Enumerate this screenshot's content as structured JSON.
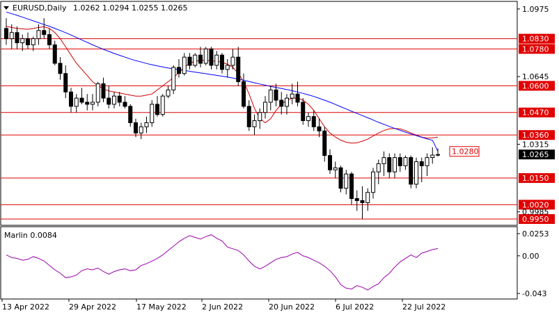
{
  "chart_data": {
    "type": "candlestick",
    "symbol_label": "EURUSD,Daily",
    "ohlc_label": "1.0262 1.0294 1.0255 1.0265",
    "ylim": [
      0.995,
      1.0995
    ],
    "price_ticks": [
      "1.0975",
      "1.0645",
      "1.0315",
      "0.9985"
    ],
    "current_price": "1.0265",
    "colors": {
      "candle": "#000000",
      "ma_blue": "#0000ff",
      "ma_red": "#d00000",
      "level": "#e00000",
      "marlin": "#9900aa",
      "price_box": "#000000"
    },
    "levels": [
      {
        "label": "1.0830",
        "value": 1.083
      },
      {
        "label": "1.0780",
        "value": 1.078
      },
      {
        "label": "1.0600",
        "value": 1.06
      },
      {
        "label": "1.0470",
        "value": 1.047
      },
      {
        "label": "1.0360",
        "value": 1.036
      },
      {
        "label": "1.0150",
        "value": 1.015
      },
      {
        "label": "1.0020",
        "value": 1.002
      },
      {
        "label": "0.9950",
        "value": 0.995
      }
    ],
    "annotation": {
      "label": "1.0280",
      "value": 1.028
    },
    "x_labels": [
      "13 Apr 2022",
      "29 Apr 2022",
      "17 May 2022",
      "2 Jun 2022",
      "20 Jun 2022",
      "6 Jul 2022",
      "22 Jul 2022"
    ],
    "candles": [
      [
        1.088,
        1.093,
        1.08,
        1.083
      ],
      [
        1.083,
        1.09,
        1.078,
        1.086
      ],
      [
        1.086,
        1.089,
        1.078,
        1.081
      ],
      [
        1.081,
        1.085,
        1.077,
        1.083
      ],
      [
        1.083,
        1.086,
        1.078,
        1.08
      ],
      [
        1.08,
        1.084,
        1.077,
        1.083
      ],
      [
        1.083,
        1.09,
        1.08,
        1.087
      ],
      [
        1.087,
        1.093,
        1.083,
        1.085
      ],
      [
        1.085,
        1.088,
        1.078,
        1.08
      ],
      [
        1.08,
        1.082,
        1.07,
        1.071
      ],
      [
        1.071,
        1.074,
        1.063,
        1.066
      ],
      [
        1.066,
        1.07,
        1.054,
        1.057
      ],
      [
        1.057,
        1.059,
        1.047,
        1.05
      ],
      [
        1.05,
        1.056,
        1.047,
        1.054
      ],
      [
        1.054,
        1.059,
        1.051,
        1.052
      ],
      [
        1.052,
        1.056,
        1.048,
        1.051
      ],
      [
        1.051,
        1.056,
        1.048,
        1.052
      ],
      [
        1.052,
        1.062,
        1.05,
        1.061
      ],
      [
        1.061,
        1.064,
        1.052,
        1.054
      ],
      [
        1.054,
        1.06,
        1.049,
        1.051
      ],
      [
        1.051,
        1.057,
        1.049,
        1.055
      ],
      [
        1.055,
        1.057,
        1.05,
        1.052
      ],
      [
        1.052,
        1.055,
        1.049,
        1.05
      ],
      [
        1.05,
        1.051,
        1.04,
        1.042
      ],
      [
        1.042,
        1.044,
        1.035,
        1.037
      ],
      [
        1.037,
        1.042,
        1.034,
        1.04
      ],
      [
        1.04,
        1.045,
        1.037,
        1.042
      ],
      [
        1.042,
        1.053,
        1.04,
        1.051
      ],
      [
        1.051,
        1.055,
        1.045,
        1.046
      ],
      [
        1.046,
        1.056,
        1.045,
        1.055
      ],
      [
        1.055,
        1.06,
        1.054,
        1.058
      ],
      [
        1.058,
        1.07,
        1.056,
        1.069
      ],
      [
        1.069,
        1.073,
        1.064,
        1.066
      ],
      [
        1.066,
        1.076,
        1.065,
        1.074
      ],
      [
        1.074,
        1.076,
        1.068,
        1.07
      ],
      [
        1.07,
        1.076,
        1.069,
        1.075
      ],
      [
        1.075,
        1.079,
        1.069,
        1.071
      ],
      [
        1.071,
        1.079,
        1.07,
        1.078
      ],
      [
        1.078,
        1.079,
        1.068,
        1.07
      ],
      [
        1.07,
        1.077,
        1.068,
        1.075
      ],
      [
        1.075,
        1.076,
        1.066,
        1.068
      ],
      [
        1.068,
        1.073,
        1.064,
        1.07
      ],
      [
        1.07,
        1.078,
        1.068,
        1.074
      ],
      [
        1.074,
        1.079,
        1.06,
        1.062
      ],
      [
        1.062,
        1.066,
        1.049,
        1.05
      ],
      [
        1.05,
        1.053,
        1.038,
        1.04
      ],
      [
        1.04,
        1.046,
        1.036,
        1.043
      ],
      [
        1.043,
        1.049,
        1.039,
        1.047
      ],
      [
        1.047,
        1.055,
        1.044,
        1.052
      ],
      [
        1.052,
        1.06,
        1.048,
        1.058
      ],
      [
        1.058,
        1.061,
        1.05,
        1.053
      ],
      [
        1.053,
        1.057,
        1.046,
        1.05
      ],
      [
        1.05,
        1.056,
        1.046,
        1.054
      ],
      [
        1.054,
        1.061,
        1.051,
        1.056
      ],
      [
        1.056,
        1.062,
        1.05,
        1.052
      ],
      [
        1.052,
        1.054,
        1.041,
        1.043
      ],
      [
        1.043,
        1.047,
        1.04,
        1.045
      ],
      [
        1.045,
        1.048,
        1.038,
        1.04
      ],
      [
        1.04,
        1.044,
        1.035,
        1.038
      ],
      [
        1.038,
        1.04,
        1.023,
        1.026
      ],
      [
        1.026,
        1.029,
        1.017,
        1.019
      ],
      [
        1.019,
        1.023,
        1.015,
        1.02
      ],
      [
        1.02,
        1.021,
        1.008,
        1.01
      ],
      [
        1.01,
        1.019,
        1.007,
        1.017
      ],
      [
        1.017,
        1.018,
        1.002,
        1.005
      ],
      [
        1.005,
        1.009,
        0.999,
        1.004
      ],
      [
        1.004,
        1.011,
        0.995,
        1.003
      ],
      [
        1.003,
        1.01,
        0.999,
        1.008
      ],
      [
        1.008,
        1.02,
        1.005,
        1.018
      ],
      [
        1.018,
        1.024,
        1.012,
        1.022
      ],
      [
        1.022,
        1.028,
        1.016,
        1.025
      ],
      [
        1.025,
        1.027,
        1.015,
        1.018
      ],
      [
        1.018,
        1.027,
        1.015,
        1.025
      ],
      [
        1.025,
        1.027,
        1.018,
        1.021
      ],
      [
        1.021,
        1.026,
        1.019,
        1.025
      ],
      [
        1.025,
        1.026,
        1.01,
        1.012
      ],
      [
        1.012,
        1.025,
        1.01,
        1.023
      ],
      [
        1.023,
        1.025,
        1.013,
        1.021
      ],
      [
        1.021,
        1.027,
        1.016,
        1.025
      ],
      [
        1.025,
        1.03,
        1.022,
        1.0262
      ],
      [
        1.0262,
        1.0294,
        1.0255,
        1.0265
      ]
    ],
    "ma_blue": [
      1.096,
      1.0952,
      1.0944,
      1.0935,
      1.0926,
      1.0917,
      1.0908,
      1.0899,
      1.089,
      1.088,
      1.087,
      1.0859,
      1.0848,
      1.0836,
      1.0824,
      1.0812,
      1.08,
      1.0789,
      1.0778,
      1.0768,
      1.0758,
      1.0749,
      1.074,
      1.0731,
      1.0723,
      1.0716,
      1.0709,
      1.0703,
      1.0697,
      1.0692,
      1.0687,
      1.0683,
      1.0679,
      1.0675,
      1.0671,
      1.0667,
      1.0663,
      1.0659,
      1.0655,
      1.0651,
      1.0647,
      1.0643,
      1.0638,
      1.0633,
      1.0627,
      1.0621,
      1.0615,
      1.0609,
      1.0603,
      1.0597,
      1.0592,
      1.0587,
      1.0582,
      1.0576,
      1.057,
      1.0563,
      1.0556,
      1.0548,
      1.0539,
      1.053,
      1.052,
      1.0509,
      1.0498,
      1.0487,
      1.0476,
      1.0465,
      1.0455,
      1.0444,
      1.0433,
      1.0422,
      1.0412,
      1.0402,
      1.0392,
      1.0383,
      1.0374,
      1.0365,
      1.0357,
      1.0349,
      1.0341,
      1.0334,
      1.028
    ],
    "ma_red": [
      1.089,
      1.0885,
      1.088,
      1.0878,
      1.0876,
      1.088,
      1.0885,
      1.0888,
      1.088,
      1.086,
      1.083,
      1.079,
      1.075,
      1.071,
      1.068,
      1.065,
      1.062,
      1.06,
      1.0585,
      1.0575,
      1.057,
      1.0565,
      1.056,
      1.0555,
      1.055,
      1.055,
      1.0555,
      1.056,
      1.058,
      1.06,
      1.062,
      1.064,
      1.0665,
      1.069,
      1.071,
      1.072,
      1.0725,
      1.0725,
      1.0722,
      1.072,
      1.0715,
      1.0705,
      1.069,
      1.066,
      1.062,
      1.056,
      1.049,
      1.044,
      1.042,
      1.044,
      1.048,
      1.051,
      1.053,
      1.054,
      1.054,
      1.053,
      1.051,
      1.048,
      1.044,
      1.04,
      1.037,
      1.035,
      1.0335,
      1.0325,
      1.032,
      1.0322,
      1.033,
      1.034,
      1.0355,
      1.037,
      1.0382,
      1.039,
      1.0392,
      1.039,
      1.0382,
      1.037,
      1.036,
      1.035,
      1.0345,
      1.0346,
      1.035
    ],
    "marlin": {
      "label": "Marlin 0.0084",
      "ylim": [
        -0.043,
        0.0253
      ],
      "ticks": [
        "0.0253",
        "0.00",
        "-0.043"
      ],
      "values": [
        0.001,
        -0.002,
        -0.003,
        -0.005,
        -0.004,
        -0.001,
        -0.003,
        -0.006,
        -0.011,
        -0.016,
        -0.02,
        -0.025,
        -0.024,
        -0.022,
        -0.017,
        -0.015,
        -0.016,
        -0.014,
        -0.018,
        -0.021,
        -0.018,
        -0.016,
        -0.015,
        -0.017,
        -0.016,
        -0.011,
        -0.009,
        -0.006,
        -0.003,
        0.001,
        0.006,
        0.011,
        0.016,
        0.02,
        0.023,
        0.021,
        0.019,
        0.022,
        0.024,
        0.02,
        0.017,
        0.01,
        0.008,
        0.006,
        0.001,
        -0.006,
        -0.012,
        -0.015,
        -0.012,
        -0.008,
        -0.004,
        -0.002,
        -0.001,
        0.002,
        0.004,
        0.0,
        -0.002,
        -0.005,
        -0.008,
        -0.012,
        -0.017,
        -0.024,
        -0.033,
        -0.037,
        -0.038,
        -0.034,
        -0.036,
        -0.039,
        -0.035,
        -0.032,
        -0.025,
        -0.02,
        -0.013,
        -0.007,
        -0.003,
        0.001,
        -0.002,
        0.003,
        0.005,
        0.007,
        0.0084
      ]
    }
  }
}
